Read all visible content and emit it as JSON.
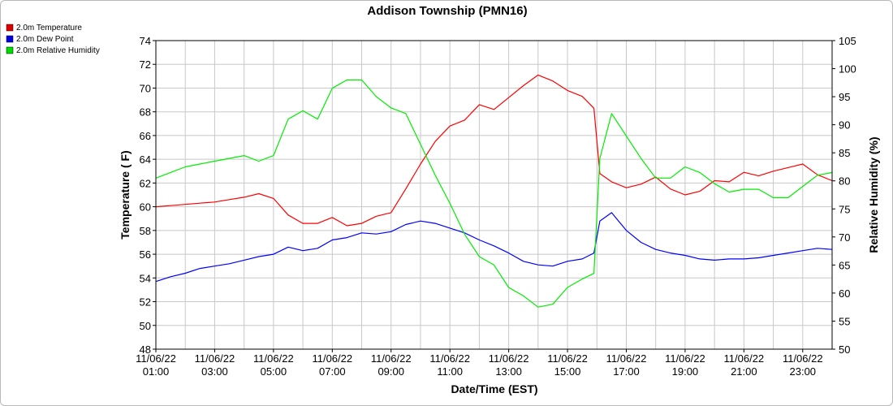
{
  "chart_data": {
    "type": "line",
    "title": "Addison Township (PMN16)",
    "xlabel": "Date/Time (EST)",
    "ylabel_left": "Temperature ( F)",
    "ylabel_right": "Relative Humidity (%)",
    "ylim_left": [
      48,
      74
    ],
    "ylim_right": [
      50,
      105
    ],
    "xlim": [
      1,
      24
    ],
    "grid": true,
    "legend_position": "top-left",
    "x_tick_labels": [
      {
        "date": "11/06/22",
        "time": "01:00",
        "hour": 1
      },
      {
        "date": "11/06/22",
        "time": "03:00",
        "hour": 3
      },
      {
        "date": "11/06/22",
        "time": "05:00",
        "hour": 5
      },
      {
        "date": "11/06/22",
        "time": "07:00",
        "hour": 7
      },
      {
        "date": "11/06/22",
        "time": "09:00",
        "hour": 9
      },
      {
        "date": "11/06/22",
        "time": "11:00",
        "hour": 11
      },
      {
        "date": "11/06/22",
        "time": "13:00",
        "hour": 13
      },
      {
        "date": "11/06/22",
        "time": "15:00",
        "hour": 15
      },
      {
        "date": "11/06/22",
        "time": "17:00",
        "hour": 17
      },
      {
        "date": "11/06/22",
        "time": "19:00",
        "hour": 19
      },
      {
        "date": "11/06/22",
        "time": "21:00",
        "hour": 21
      },
      {
        "date": "11/06/22",
        "time": "23:00",
        "hour": 23
      }
    ],
    "y_left_ticks": [
      48,
      50,
      52,
      54,
      56,
      58,
      60,
      62,
      64,
      66,
      68,
      70,
      72,
      74
    ],
    "y_right_ticks": [
      50,
      55,
      60,
      65,
      70,
      75,
      80,
      85,
      90,
      95,
      100,
      105
    ],
    "series": [
      {
        "name": "2.0m Temperature",
        "color": "#ff0000",
        "axis": "left",
        "x": [
          1,
          1.5,
          2,
          2.5,
          3,
          3.5,
          4,
          4.5,
          5,
          5.5,
          6,
          6.5,
          7,
          7.5,
          8,
          8.5,
          9,
          9.5,
          10,
          10.5,
          11,
          11.5,
          12,
          12.5,
          13,
          13.5,
          14,
          14.5,
          15,
          15.5,
          15.9,
          16.1,
          16.5,
          17,
          17.5,
          18,
          18.5,
          19,
          19.5,
          20,
          20.5,
          21,
          21.5,
          22,
          22.5,
          23,
          23.5,
          24
        ],
        "y": [
          60.0,
          60.1,
          60.2,
          60.3,
          60.4,
          60.6,
          60.8,
          61.1,
          60.7,
          59.3,
          58.6,
          58.6,
          59.1,
          58.4,
          58.6,
          59.2,
          59.5,
          61.5,
          63.6,
          65.5,
          66.8,
          67.3,
          68.6,
          68.2,
          69.2,
          70.2,
          71.1,
          70.6,
          69.8,
          69.3,
          68.3,
          62.8,
          62.1,
          61.6,
          61.9,
          62.5,
          61.5,
          61.0,
          61.3,
          62.2,
          62.1,
          62.9,
          62.6,
          63.0,
          63.3,
          63.6,
          62.7,
          62.2
        ]
      },
      {
        "name": "2.0m Dew Point",
        "color": "#0000ff",
        "axis": "left",
        "x": [
          1,
          1.5,
          2,
          2.5,
          3,
          3.5,
          4,
          4.5,
          5,
          5.5,
          6,
          6.5,
          7,
          7.5,
          8,
          8.5,
          9,
          9.5,
          10,
          10.5,
          11,
          11.5,
          12,
          12.5,
          13,
          13.5,
          14,
          14.5,
          15,
          15.5,
          15.9,
          16.1,
          16.5,
          17,
          17.5,
          18,
          18.5,
          19,
          19.5,
          20,
          20.5,
          21,
          21.5,
          22,
          22.5,
          23,
          23.5,
          24
        ],
        "y": [
          53.7,
          54.1,
          54.4,
          54.8,
          55.0,
          55.2,
          55.5,
          55.8,
          56.0,
          56.6,
          56.3,
          56.5,
          57.2,
          57.4,
          57.8,
          57.7,
          57.9,
          58.5,
          58.8,
          58.6,
          58.2,
          57.8,
          57.2,
          56.7,
          56.1,
          55.4,
          55.1,
          55.0,
          55.4,
          55.6,
          56.1,
          58.8,
          59.5,
          58.0,
          57.0,
          56.4,
          56.1,
          55.9,
          55.6,
          55.5,
          55.6,
          55.6,
          55.7,
          55.9,
          56.1,
          56.3,
          56.5,
          56.4
        ]
      },
      {
        "name": "2.0m Relative Humidity",
        "color": "#00ee00",
        "axis": "right",
        "x": [
          1,
          1.5,
          2,
          2.5,
          3,
          3.5,
          4,
          4.5,
          5,
          5.5,
          6,
          6.5,
          7,
          7.5,
          8,
          8.5,
          9,
          9.5,
          10,
          10.5,
          11,
          11.5,
          12,
          12.5,
          13,
          13.5,
          14,
          14.5,
          15,
          15.5,
          15.9,
          16.1,
          16.5,
          17,
          17.5,
          18,
          18.5,
          19,
          19.5,
          20,
          20.5,
          21,
          21.5,
          22,
          22.5,
          23,
          23.5,
          24
        ],
        "y": [
          80.5,
          81.5,
          82.5,
          83.0,
          83.5,
          84.0,
          84.5,
          83.5,
          84.5,
          91.0,
          92.5,
          91.0,
          96.5,
          98.0,
          98.0,
          95.0,
          93.0,
          92.0,
          86.5,
          81.0,
          76.0,
          70.5,
          66.5,
          65.0,
          61.0,
          59.5,
          57.5,
          58.0,
          61.0,
          62.5,
          63.5,
          84.0,
          92.0,
          88.0,
          84.0,
          80.5,
          80.5,
          82.5,
          81.5,
          79.5,
          78.0,
          78.5,
          78.5,
          77.0,
          77.0,
          79.0,
          81.0,
          81.5
        ]
      }
    ]
  },
  "legend": [
    {
      "label": "2.0m Temperature",
      "color": "#dd0000"
    },
    {
      "label": "2.0m Dew Point",
      "color": "#0000dd"
    },
    {
      "label": "2.0m Relative Humidity",
      "color": "#00dd00"
    }
  ]
}
